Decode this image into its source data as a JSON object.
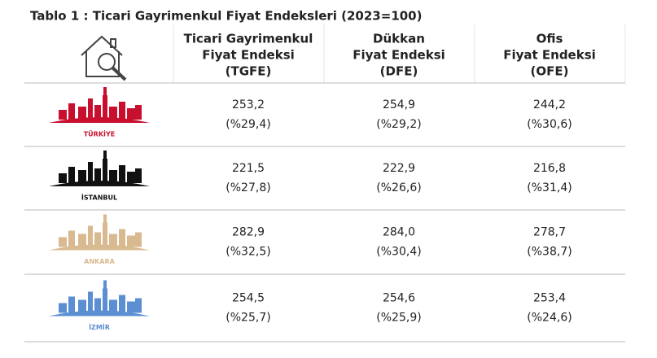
{
  "title": "Tablo 1 : Ticari Gayrimenkul Fiyat Endeksleri (2023=100)",
  "table": {
    "columns": [
      [
        "Ticari Gayrimenkul",
        "Fiyat Endeksi",
        "(TGFE)"
      ],
      [
        "Dükkan",
        "Fiyat Endeksi",
        "(DFE)"
      ],
      [
        "Ofis",
        "Fiyat Endeksi",
        "(OFE)"
      ]
    ],
    "rows": [
      {
        "label": "TÜRKİYE",
        "cells": [
          [
            "253,2",
            "(%29,4)"
          ],
          [
            "254,9",
            "(%29,2)"
          ],
          [
            "244,2",
            "(%30,6)"
          ]
        ]
      },
      {
        "label": "İSTANBUL",
        "cells": [
          [
            "221,5",
            "(%27,8)"
          ],
          [
            "222,9",
            "(%26,6)"
          ],
          [
            "216,8",
            "(%31,4)"
          ]
        ]
      },
      {
        "label": "ANKARA",
        "cells": [
          [
            "282,9",
            "(%32,5)"
          ],
          [
            "284,0",
            "(%30,4)"
          ],
          [
            "278,7",
            "(%38,7)"
          ]
        ]
      },
      {
        "label": "İZMİR",
        "cells": [
          [
            "254,5",
            "(%25,7)"
          ],
          [
            "254,6",
            "(%25,9)"
          ],
          [
            "253,4",
            "(%24,6)"
          ]
        ]
      }
    ]
  }
}
